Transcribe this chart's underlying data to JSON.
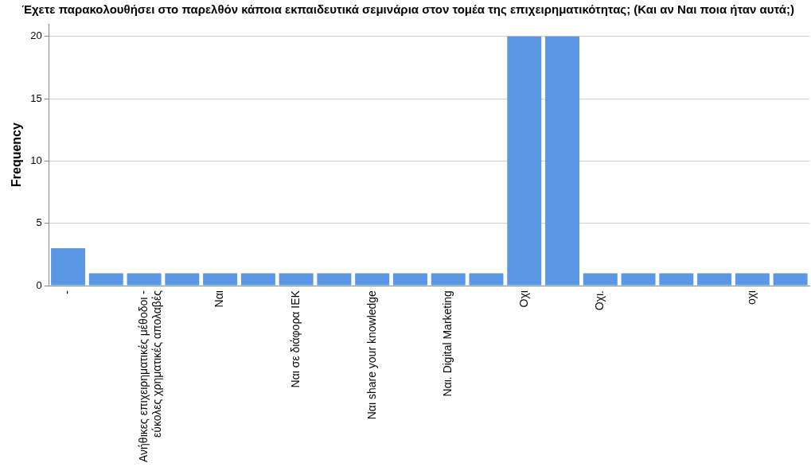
{
  "chart_data": {
    "type": "bar",
    "title": "Έχετε παρακολουθήσει στο παρελθόν κάποια εκπαιδευτικά σεμινάρια στον τομέα της επιχειρηματικότητας; (Και αν Ναι ποια ήταν αυτά;)",
    "ylabel": "Frequency",
    "categories": [
      "-",
      null,
      "Ανήθικες επιχειρηματικές μέθοδοι - εύκολες χρηματικές απολαβές",
      null,
      "Ναι",
      null,
      "Ναι σε διάφορα ΙΕΚ",
      null,
      "Ναι share your knowledge",
      null,
      "Ναι. Digital Marketing",
      null,
      "Οχι",
      null,
      "Οχι.",
      null,
      null,
      null,
      "οχι",
      null
    ],
    "values": [
      3,
      1,
      1,
      1,
      1,
      1,
      1,
      1,
      1,
      1,
      1,
      1,
      20,
      20,
      1,
      1,
      1,
      1,
      1,
      1
    ],
    "color": "#5a97e5",
    "ylim": [
      0,
      21
    ],
    "yticks": [
      0,
      5,
      10,
      15,
      20
    ],
    "grid": "y",
    "legend": false
  }
}
